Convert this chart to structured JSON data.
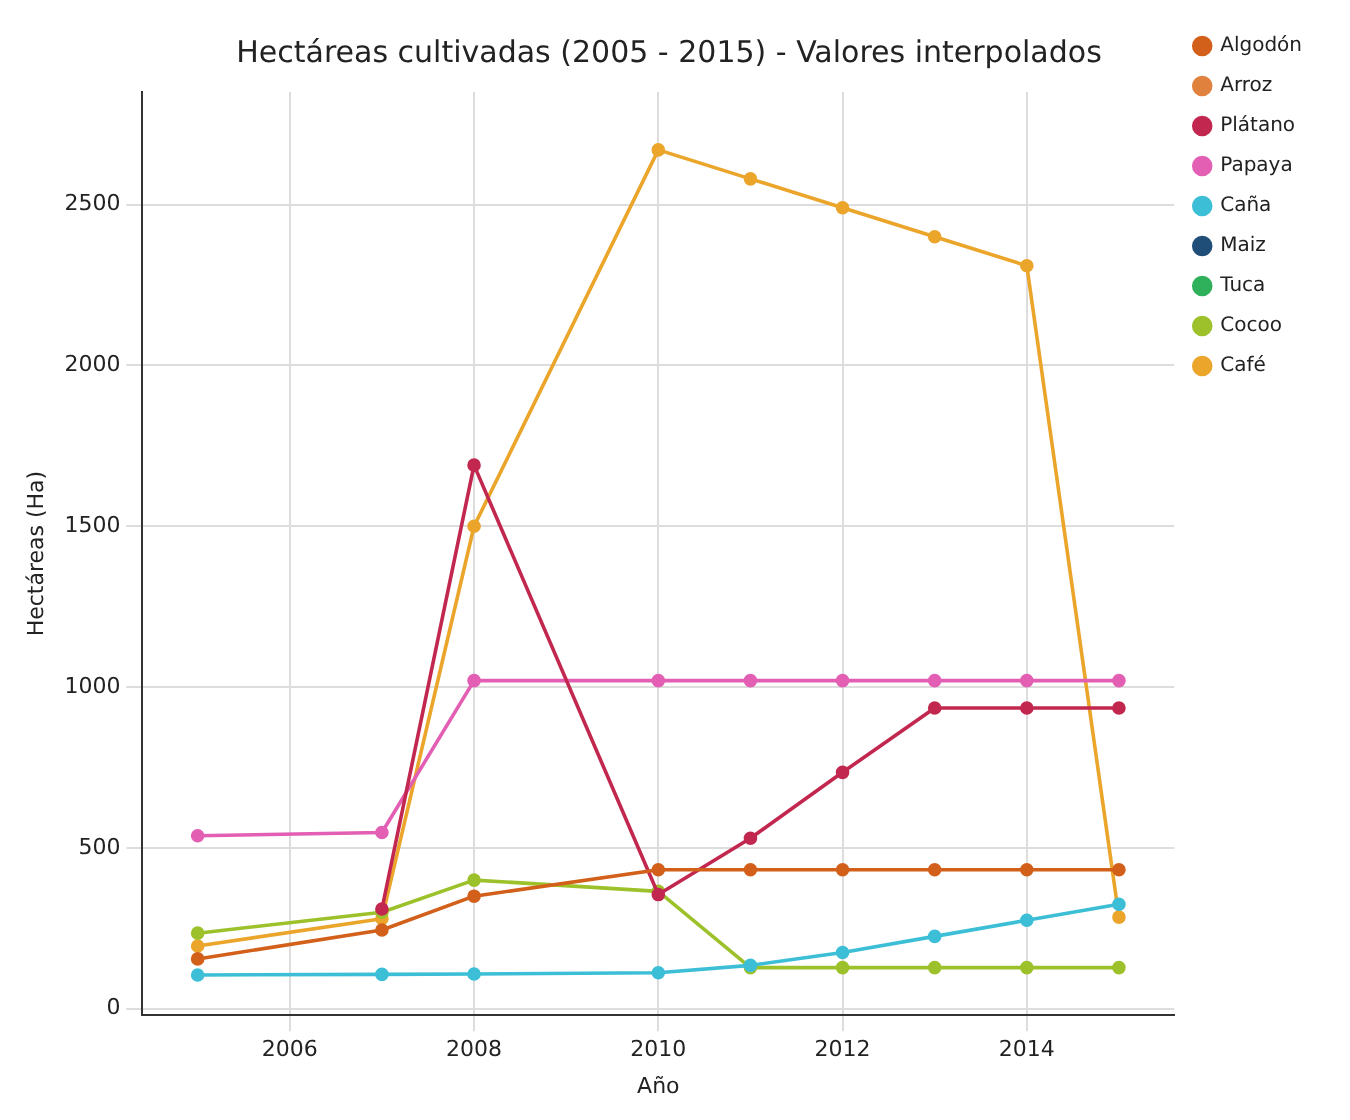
{
  "chart_data": {
    "type": "line",
    "title": "Hectáreas cultivadas (2005 - 2015) - Valores interpolados",
    "xlabel": "Año",
    "ylabel": "Hectáreas (Ha)",
    "x": [
      2005,
      2007,
      2008,
      2010,
      2011,
      2012,
      2013,
      2014,
      2015
    ],
    "series": [
      {
        "name": "Algodón",
        "color": "#d2601a",
        "values": [
          155,
          245,
          350,
          432,
          432,
          432,
          432,
          432,
          432
        ]
      },
      {
        "name": "Arroz",
        "color": "#e0823d",
        "values": [
          null,
          null,
          null,
          null,
          null,
          null,
          null,
          null,
          null
        ]
      },
      {
        "name": "Plátano",
        "color": "#c2284f",
        "values": [
          null,
          310,
          1690,
          355,
          530,
          735,
          935,
          935,
          935
        ]
      },
      {
        "name": "Papaya",
        "color": "#e35fb4",
        "values": [
          538,
          548,
          1020,
          1020,
          1020,
          1020,
          1020,
          1020,
          1020
        ]
      },
      {
        "name": "Caña",
        "color": "#3cbfd6",
        "values": [
          105,
          107,
          108,
          112,
          135,
          175,
          225,
          275,
          325
        ]
      },
      {
        "name": "Maiz",
        "color": "#1f4e79",
        "values": [
          null,
          null,
          null,
          null,
          null,
          null,
          null,
          null,
          null
        ]
      },
      {
        "name": "Tuca",
        "color": "#2fb05a",
        "values": [
          null,
          null,
          null,
          null,
          null,
          null,
          null,
          null,
          null
        ]
      },
      {
        "name": "Cocoo",
        "color": "#9dc12b",
        "values": [
          235,
          300,
          400,
          365,
          128,
          128,
          128,
          128,
          128
        ]
      },
      {
        "name": "Café",
        "color": "#eba52a",
        "values": [
          195,
          280,
          1500,
          2670,
          2580,
          2490,
          2400,
          2310,
          285
        ]
      }
    ],
    "xlim": [
      2004.4,
      2015.6
    ],
    "xticks": [
      2006,
      2008,
      2010,
      2012,
      2014
    ],
    "ylim": [
      -20,
      2850
    ],
    "yticks": [
      0,
      500,
      1000,
      1500,
      2000,
      2500
    ],
    "grid": true,
    "legend": "top right",
    "marker": "circle",
    "line_style": "solid"
  }
}
